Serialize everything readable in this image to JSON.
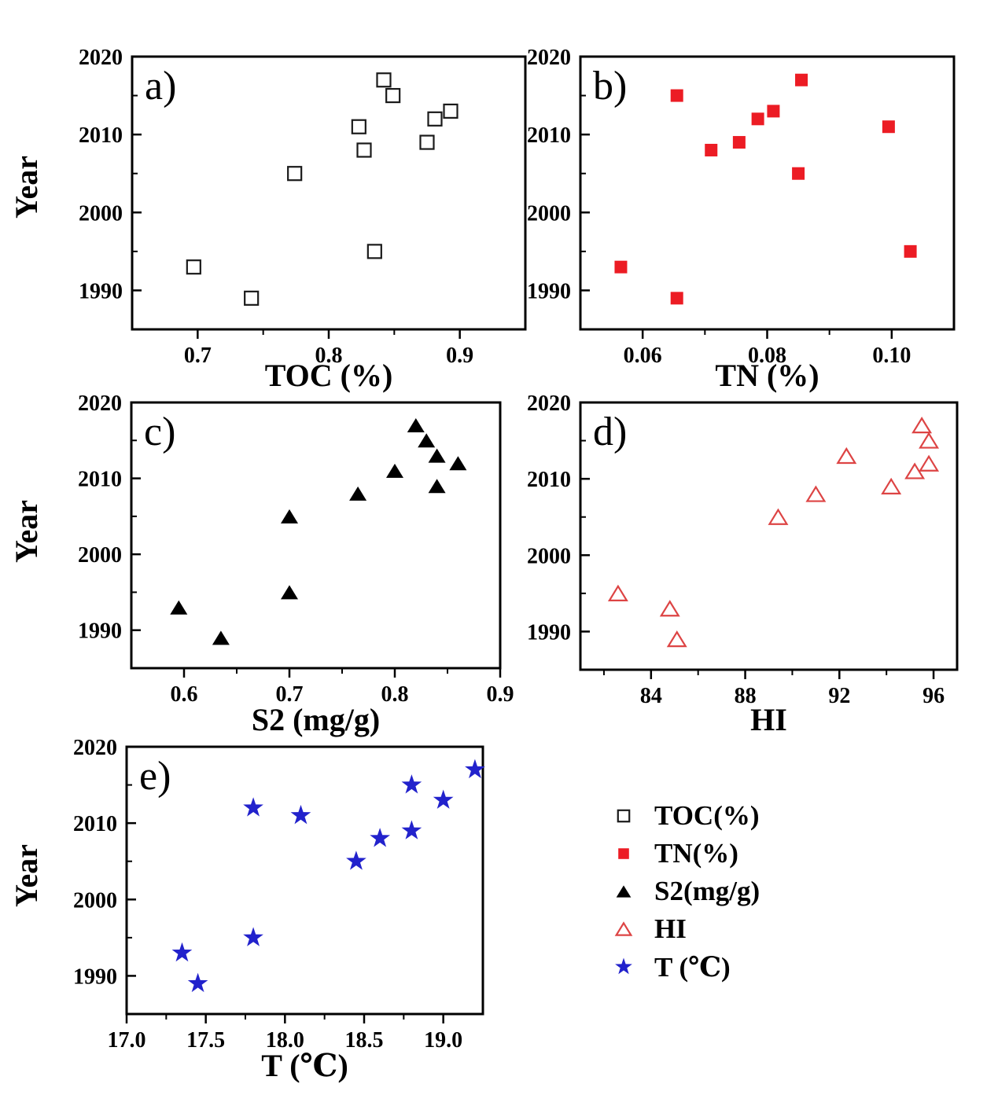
{
  "figure": {
    "ylabel": "Year",
    "background": "#ffffff",
    "axis_color": "#000000"
  },
  "chart_data": [
    {
      "id": "a",
      "type": "scatter",
      "panel_label": "a)",
      "xlabel": "TOC (%)",
      "ylabel": "Year",
      "marker": "square-open",
      "color": "#1a1a1a",
      "xlim": [
        0.65,
        0.95
      ],
      "ylim": [
        1985,
        2020
      ],
      "xticks": [
        0.7,
        0.8,
        0.9
      ],
      "xtick_labels": [
        "0.7",
        "0.8",
        "0.9"
      ],
      "xminor": [
        0.75,
        0.85
      ],
      "yticks": [
        1990,
        2000,
        2010,
        2020
      ],
      "yminor": [
        1995,
        2005,
        2015
      ],
      "x": [
        0.741,
        0.697,
        0.835,
        0.774,
        0.827,
        0.875,
        0.823,
        0.881,
        0.893,
        0.849,
        0.842
      ],
      "y": [
        1989,
        1993,
        1995,
        2005,
        2008,
        2009,
        2011,
        2012,
        2013,
        2015,
        2017
      ]
    },
    {
      "id": "b",
      "type": "scatter",
      "panel_label": "b)",
      "xlabel": "TN (%)",
      "ylabel": "Year",
      "marker": "square-filled",
      "color": "#ec1c24",
      "xlim": [
        0.05,
        0.11
      ],
      "ylim": [
        1985,
        2020
      ],
      "xticks": [
        0.06,
        0.08,
        0.1
      ],
      "xtick_labels": [
        "0.06",
        "0.08",
        "0.10"
      ],
      "xminor": [
        0.07,
        0.09
      ],
      "yticks": [
        1990,
        2000,
        2010,
        2020
      ],
      "yminor": [
        1995,
        2005,
        2015
      ],
      "x": [
        0.0655,
        0.0565,
        0.103,
        0.085,
        0.071,
        0.0755,
        0.0995,
        0.0785,
        0.081,
        0.0655,
        0.0855
      ],
      "y": [
        1989,
        1993,
        1995,
        2005,
        2008,
        2009,
        2011,
        2012,
        2013,
        2015,
        2017
      ]
    },
    {
      "id": "c",
      "type": "scatter",
      "panel_label": "c)",
      "xlabel": "S2 (mg/g)",
      "ylabel": "Year",
      "marker": "triangle-filled",
      "color": "#000000",
      "xlim": [
        0.55,
        0.9
      ],
      "ylim": [
        1985,
        2020
      ],
      "xticks": [
        0.6,
        0.7,
        0.8,
        0.9
      ],
      "xtick_labels": [
        "0.6",
        "0.7",
        "0.8",
        "0.9"
      ],
      "xminor": [
        0.65,
        0.75,
        0.85
      ],
      "yticks": [
        1990,
        2000,
        2010,
        2020
      ],
      "yminor": [
        1995,
        2005,
        2015
      ],
      "x": [
        0.635,
        0.595,
        0.7,
        0.7,
        0.765,
        0.84,
        0.8,
        0.86,
        0.84,
        0.83,
        0.82
      ],
      "y": [
        1989,
        1993,
        1995,
        2005,
        2008,
        2009,
        2011,
        2012,
        2013,
        2015,
        2017
      ]
    },
    {
      "id": "d",
      "type": "scatter",
      "panel_label": "d)",
      "xlabel": "HI",
      "ylabel": "Year",
      "marker": "triangle-open",
      "color": "#dd4444",
      "xlim": [
        81,
        97
      ],
      "ylim": [
        1985,
        2020
      ],
      "xticks": [
        84,
        88,
        92,
        96
      ],
      "xtick_labels": [
        "84",
        "88",
        "92",
        "96"
      ],
      "xminor": [
        82,
        86,
        90,
        94
      ],
      "yticks": [
        1990,
        2000,
        2010,
        2020
      ],
      "yminor": [
        1995,
        2005,
        2015
      ],
      "x": [
        85.1,
        84.8,
        82.6,
        89.4,
        91.0,
        94.2,
        95.2,
        95.8,
        92.3,
        95.8,
        95.5
      ],
      "y": [
        1989,
        1993,
        1995,
        2005,
        2008,
        2009,
        2011,
        2012,
        2013,
        2015,
        2017
      ]
    },
    {
      "id": "e",
      "type": "scatter",
      "panel_label": "e)",
      "xlabel": "T (℃)",
      "ylabel": "Year",
      "marker": "star-filled",
      "color": "#2222cc",
      "xlim": [
        17.0,
        19.25
      ],
      "ylim": [
        1985,
        2020
      ],
      "xticks": [
        17.0,
        17.5,
        18.0,
        18.5,
        19.0
      ],
      "xtick_labels": [
        "17.0",
        "17.5",
        "18.0",
        "18.5",
        "19.0"
      ],
      "xminor": [
        17.25,
        17.75,
        18.25,
        18.75
      ],
      "yticks": [
        1990,
        2000,
        2010,
        2020
      ],
      "yminor": [
        1995,
        2005,
        2015
      ],
      "x": [
        17.45,
        17.35,
        17.8,
        18.45,
        18.6,
        18.8,
        18.1,
        17.8,
        19.0,
        18.8,
        19.2
      ],
      "y": [
        1989,
        1993,
        1995,
        2005,
        2008,
        2009,
        2011,
        2012,
        2013,
        2015,
        2017
      ]
    }
  ],
  "legend": {
    "items": [
      {
        "label": "TOC(%)",
        "marker": "square-open",
        "color": "#1a1a1a"
      },
      {
        "label": "TN(%)",
        "marker": "square-filled",
        "color": "#ec1c24"
      },
      {
        "label": "S2(mg/g)",
        "marker": "triangle-filled",
        "color": "#000000"
      },
      {
        "label": "HI",
        "marker": "triangle-open",
        "color": "#dd4444"
      },
      {
        "label": "T (℃)",
        "marker": "star-filled",
        "color": "#2222cc"
      }
    ]
  }
}
